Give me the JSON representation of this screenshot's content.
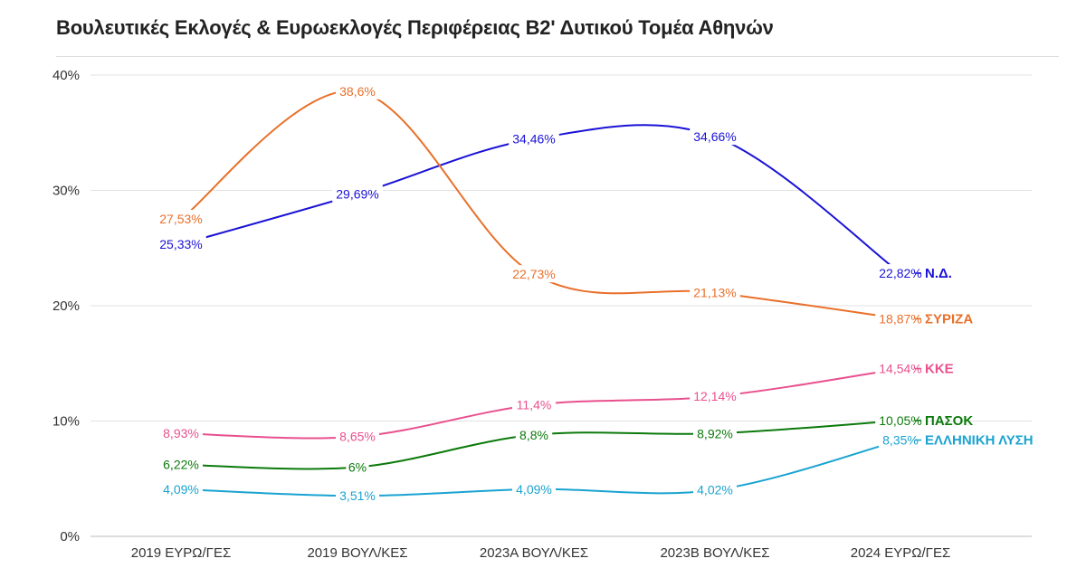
{
  "title": "Βουλευτικές Εκλογές & Ευρωεκλογές Περιφέρειας Β2' Δυτικού Τομέα Αθηνών",
  "chart_data": {
    "type": "line",
    "categories": [
      "2019 ΕΥΡΩ/ΓΕΣ",
      "2019 ΒΟΥΛ/ΚΕΣ",
      "2023Α ΒΟΥΛ/ΚΕΣ",
      "2023Β ΒΟΥΛ/ΚΕΣ",
      "2024 ΕΥΡΩ/ΓΕΣ"
    ],
    "ylim": [
      0,
      40
    ],
    "yticks": [
      0,
      10,
      20,
      30,
      40
    ],
    "ytick_labels": [
      "0%",
      "10%",
      "20%",
      "30%",
      "40%"
    ],
    "grid": true,
    "legend": "series labels at right end of lines",
    "series": [
      {
        "name": "Ν.Δ.",
        "color": "#1a12d6",
        "values": [
          25.33,
          29.69,
          34.46,
          34.66,
          22.82
        ],
        "labels": [
          "25,33%",
          "29,69%",
          "34,46%",
          "34,66%",
          "22,82%"
        ]
      },
      {
        "name": "ΣΥΡΙΖΑ",
        "color": "#e8702a",
        "values": [
          27.53,
          38.6,
          22.73,
          21.13,
          18.87
        ],
        "labels": [
          "27,53%",
          "38,6%",
          "22,73%",
          "21,13%",
          "18,87%"
        ]
      },
      {
        "name": "ΚΚΕ",
        "color": "#e8508e",
        "values": [
          8.93,
          8.65,
          11.4,
          12.14,
          14.54
        ],
        "labels": [
          "8,93%",
          "8,65%",
          "11,4%",
          "12,14%",
          "14,54%"
        ]
      },
      {
        "name": "ΠΑΣΟΚ",
        "color": "#0b7a0b",
        "values": [
          6.22,
          6,
          8.8,
          8.92,
          10.05
        ],
        "labels": [
          "6,22%",
          "6%",
          "8,8%",
          "8,92%",
          "10,05%"
        ]
      },
      {
        "name": "ΕΛΛΗΝΙΚΗ ΛΥΣΗ",
        "color": "#1aa3d1",
        "values": [
          4.09,
          3.51,
          4.09,
          4.02,
          8.35
        ],
        "labels": [
          "4,09%",
          "3,51%",
          "4,09%",
          "4,02%",
          "8,35%"
        ]
      }
    ]
  }
}
